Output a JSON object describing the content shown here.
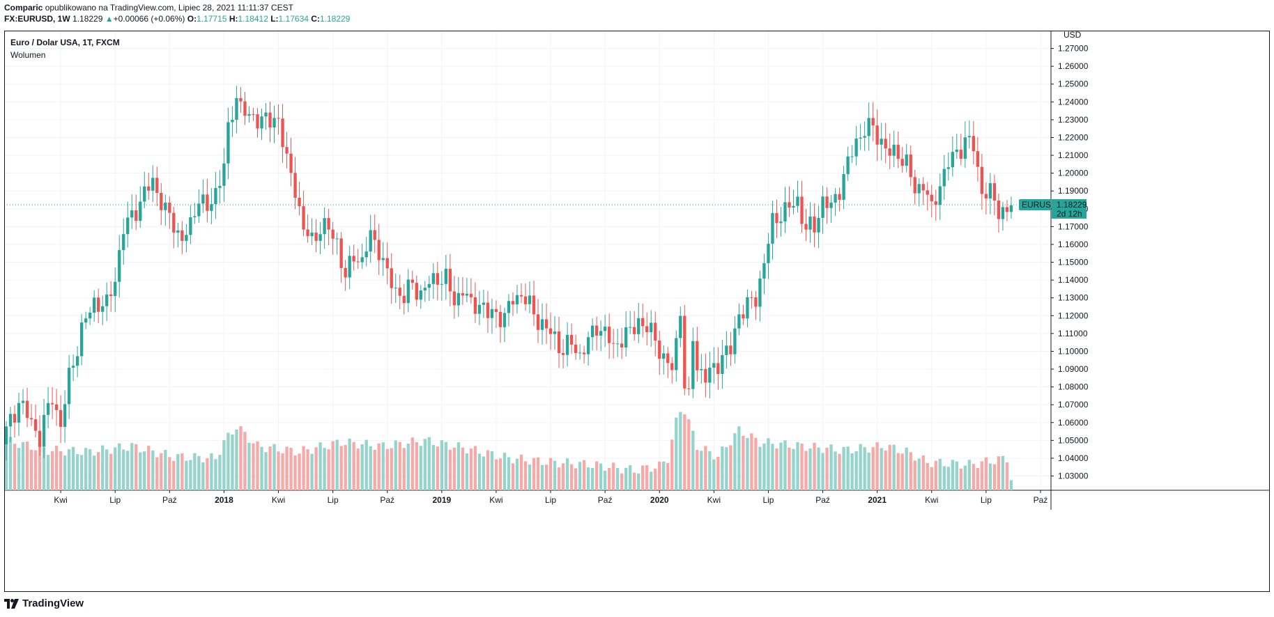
{
  "header": {
    "author": "Comparic",
    "published_text": "opublikowano na TradingView.com, Lipiec 28, 2021 11:11:37 CEST",
    "symbol": "FX:EURUSD, 1W",
    "last": "1.18229",
    "change": "+0.00066 (+0.06%)",
    "o_label": "O:",
    "o_value": "1.17715",
    "h_label": "H:",
    "h_value": "1.18412",
    "l_label": "L:",
    "l_value": "1.17634",
    "c_label": "C:",
    "c_value": "1.18229"
  },
  "legend": {
    "title": "Euro / Dolar USA, 1T, FXCM",
    "volume_label": "Wolumen"
  },
  "footer": {
    "brand": "TradingView"
  },
  "colors": {
    "up": "#26a69a",
    "down": "#ef5350",
    "vol_up": "#95d4cc",
    "vol_down": "#f6a9a7",
    "grid": "#f0f3fa",
    "price_line": "#26a69a"
  },
  "price_tag": {
    "symbol": "EURUSD",
    "price": "1.18229",
    "countdown": "2d 12h"
  },
  "chart_data": {
    "type": "candlestick",
    "y_unit": "USD",
    "ylim": [
      1.022,
      1.28
    ],
    "y_ticks": [
      "1.03000",
      "1.04000",
      "1.05000",
      "1.06000",
      "1.07000",
      "1.08000",
      "1.09000",
      "1.10000",
      "1.11000",
      "1.12000",
      "1.13000",
      "1.14000",
      "1.15000",
      "1.16000",
      "1.17000",
      "1.18000",
      "1.19000",
      "1.20000",
      "1.21000",
      "1.22000",
      "1.23000",
      "1.24000",
      "1.25000",
      "1.26000",
      "1.27000"
    ],
    "x_ticks": [
      {
        "label": "Kwi",
        "bold": false,
        "index": 13
      },
      {
        "label": "Lip",
        "bold": false,
        "index": 26
      },
      {
        "label": "Paź",
        "bold": false,
        "index": 39
      },
      {
        "label": "2018",
        "bold": true,
        "index": 52
      },
      {
        "label": "Kwi",
        "bold": false,
        "index": 65
      },
      {
        "label": "Lip",
        "bold": false,
        "index": 78
      },
      {
        "label": "Paź",
        "bold": false,
        "index": 91
      },
      {
        "label": "2019",
        "bold": true,
        "index": 104
      },
      {
        "label": "Kwi",
        "bold": false,
        "index": 117
      },
      {
        "label": "Lip",
        "bold": false,
        "index": 130
      },
      {
        "label": "Paź",
        "bold": false,
        "index": 143
      },
      {
        "label": "2020",
        "bold": true,
        "index": 156
      },
      {
        "label": "Kwi",
        "bold": false,
        "index": 169
      },
      {
        "label": "Lip",
        "bold": false,
        "index": 182
      },
      {
        "label": "Paź",
        "bold": false,
        "index": 195
      },
      {
        "label": "2021",
        "bold": true,
        "index": 208
      },
      {
        "label": "Kwi",
        "bold": false,
        "index": 221
      },
      {
        "label": "Lip",
        "bold": false,
        "index": 234
      },
      {
        "label": "Paź",
        "bold": false,
        "index": 247
      }
    ],
    "x_slots": 250,
    "anchors": [
      [
        0,
        1.055
      ],
      [
        3,
        1.072
      ],
      [
        6,
        1.06
      ],
      [
        8,
        1.052
      ],
      [
        11,
        1.075
      ],
      [
        13,
        1.058
      ],
      [
        15,
        1.085
      ],
      [
        18,
        1.112
      ],
      [
        21,
        1.128
      ],
      [
        24,
        1.125
      ],
      [
        26,
        1.142
      ],
      [
        28,
        1.168
      ],
      [
        31,
        1.18
      ],
      [
        33,
        1.188
      ],
      [
        35,
        1.196
      ],
      [
        38,
        1.178
      ],
      [
        40,
        1.172
      ],
      [
        42,
        1.162
      ],
      [
        44,
        1.17
      ],
      [
        46,
        1.188
      ],
      [
        48,
        1.178
      ],
      [
        50,
        1.19
      ],
      [
        52,
        1.205
      ],
      [
        53,
        1.222
      ],
      [
        55,
        1.245
      ],
      [
        56,
        1.238
      ],
      [
        58,
        1.23
      ],
      [
        60,
        1.232
      ],
      [
        63,
        1.228
      ],
      [
        65,
        1.232
      ],
      [
        67,
        1.205
      ],
      [
        69,
        1.192
      ],
      [
        71,
        1.168
      ],
      [
        73,
        1.162
      ],
      [
        75,
        1.17
      ],
      [
        77,
        1.168
      ],
      [
        79,
        1.162
      ],
      [
        81,
        1.14
      ],
      [
        83,
        1.155
      ],
      [
        85,
        1.15
      ],
      [
        87,
        1.165
      ],
      [
        89,
        1.158
      ],
      [
        91,
        1.142
      ],
      [
        93,
        1.135
      ],
      [
        95,
        1.13
      ],
      [
        97,
        1.138
      ],
      [
        99,
        1.132
      ],
      [
        101,
        1.138
      ],
      [
        103,
        1.142
      ],
      [
        105,
        1.14
      ],
      [
        107,
        1.128
      ],
      [
        109,
        1.135
      ],
      [
        111,
        1.125
      ],
      [
        113,
        1.128
      ],
      [
        115,
        1.12
      ],
      [
        117,
        1.122
      ],
      [
        119,
        1.118
      ],
      [
        121,
        1.13
      ],
      [
        123,
        1.132
      ],
      [
        125,
        1.125
      ],
      [
        127,
        1.118
      ],
      [
        129,
        1.112
      ],
      [
        131,
        1.108
      ],
      [
        133,
        1.1
      ],
      [
        135,
        1.105
      ],
      [
        137,
        1.098
      ],
      [
        139,
        1.105
      ],
      [
        141,
        1.115
      ],
      [
        143,
        1.11
      ],
      [
        145,
        1.102
      ],
      [
        147,
        1.108
      ],
      [
        149,
        1.11
      ],
      [
        151,
        1.118
      ],
      [
        153,
        1.112
      ],
      [
        155,
        1.108
      ],
      [
        157,
        1.095
      ],
      [
        159,
        1.09
      ],
      [
        160,
        1.105
      ],
      [
        161,
        1.125
      ],
      [
        162,
        1.08
      ],
      [
        163,
        1.072
      ],
      [
        164,
        1.108
      ],
      [
        165,
        1.092
      ],
      [
        167,
        1.085
      ],
      [
        169,
        1.09
      ],
      [
        171,
        1.098
      ],
      [
        173,
        1.1
      ],
      [
        175,
        1.122
      ],
      [
        177,
        1.125
      ],
      [
        179,
        1.13
      ],
      [
        181,
        1.15
      ],
      [
        183,
        1.172
      ],
      [
        185,
        1.178
      ],
      [
        187,
        1.18
      ],
      [
        189,
        1.185
      ],
      [
        191,
        1.168
      ],
      [
        193,
        1.17
      ],
      [
        195,
        1.185
      ],
      [
        197,
        1.18
      ],
      [
        199,
        1.192
      ],
      [
        201,
        1.205
      ],
      [
        203,
        1.218
      ],
      [
        205,
        1.225
      ],
      [
        207,
        1.225
      ],
      [
        209,
        1.218
      ],
      [
        211,
        1.21
      ],
      [
        213,
        1.212
      ],
      [
        215,
        1.205
      ],
      [
        217,
        1.19
      ],
      [
        219,
        1.195
      ],
      [
        221,
        1.178
      ],
      [
        223,
        1.195
      ],
      [
        225,
        1.205
      ],
      [
        227,
        1.212
      ],
      [
        229,
        1.218
      ],
      [
        231,
        1.215
      ],
      [
        233,
        1.19
      ],
      [
        235,
        1.188
      ],
      [
        237,
        1.18
      ],
      [
        239,
        1.178
      ],
      [
        240,
        1.182
      ]
    ],
    "volume_anchors": [
      [
        0,
        0.62
      ],
      [
        10,
        0.5
      ],
      [
        20,
        0.48
      ],
      [
        30,
        0.55
      ],
      [
        40,
        0.42
      ],
      [
        50,
        0.4
      ],
      [
        52,
        0.6
      ],
      [
        55,
        0.8
      ],
      [
        60,
        0.55
      ],
      [
        70,
        0.48
      ],
      [
        80,
        0.6
      ],
      [
        90,
        0.55
      ],
      [
        100,
        0.62
      ],
      [
        110,
        0.52
      ],
      [
        120,
        0.4
      ],
      [
        130,
        0.35
      ],
      [
        140,
        0.32
      ],
      [
        150,
        0.25
      ],
      [
        156,
        0.3
      ],
      [
        158,
        0.4
      ],
      [
        160,
        0.85
      ],
      [
        161,
        1.0
      ],
      [
        162,
        1.0
      ],
      [
        163,
        0.85
      ],
      [
        165,
        0.55
      ],
      [
        170,
        0.42
      ],
      [
        175,
        0.75
      ],
      [
        180,
        0.6
      ],
      [
        190,
        0.55
      ],
      [
        200,
        0.5
      ],
      [
        210,
        0.55
      ],
      [
        215,
        0.48
      ],
      [
        220,
        0.35
      ],
      [
        230,
        0.32
      ],
      [
        239,
        0.4
      ],
      [
        240,
        0.15
      ]
    ]
  }
}
